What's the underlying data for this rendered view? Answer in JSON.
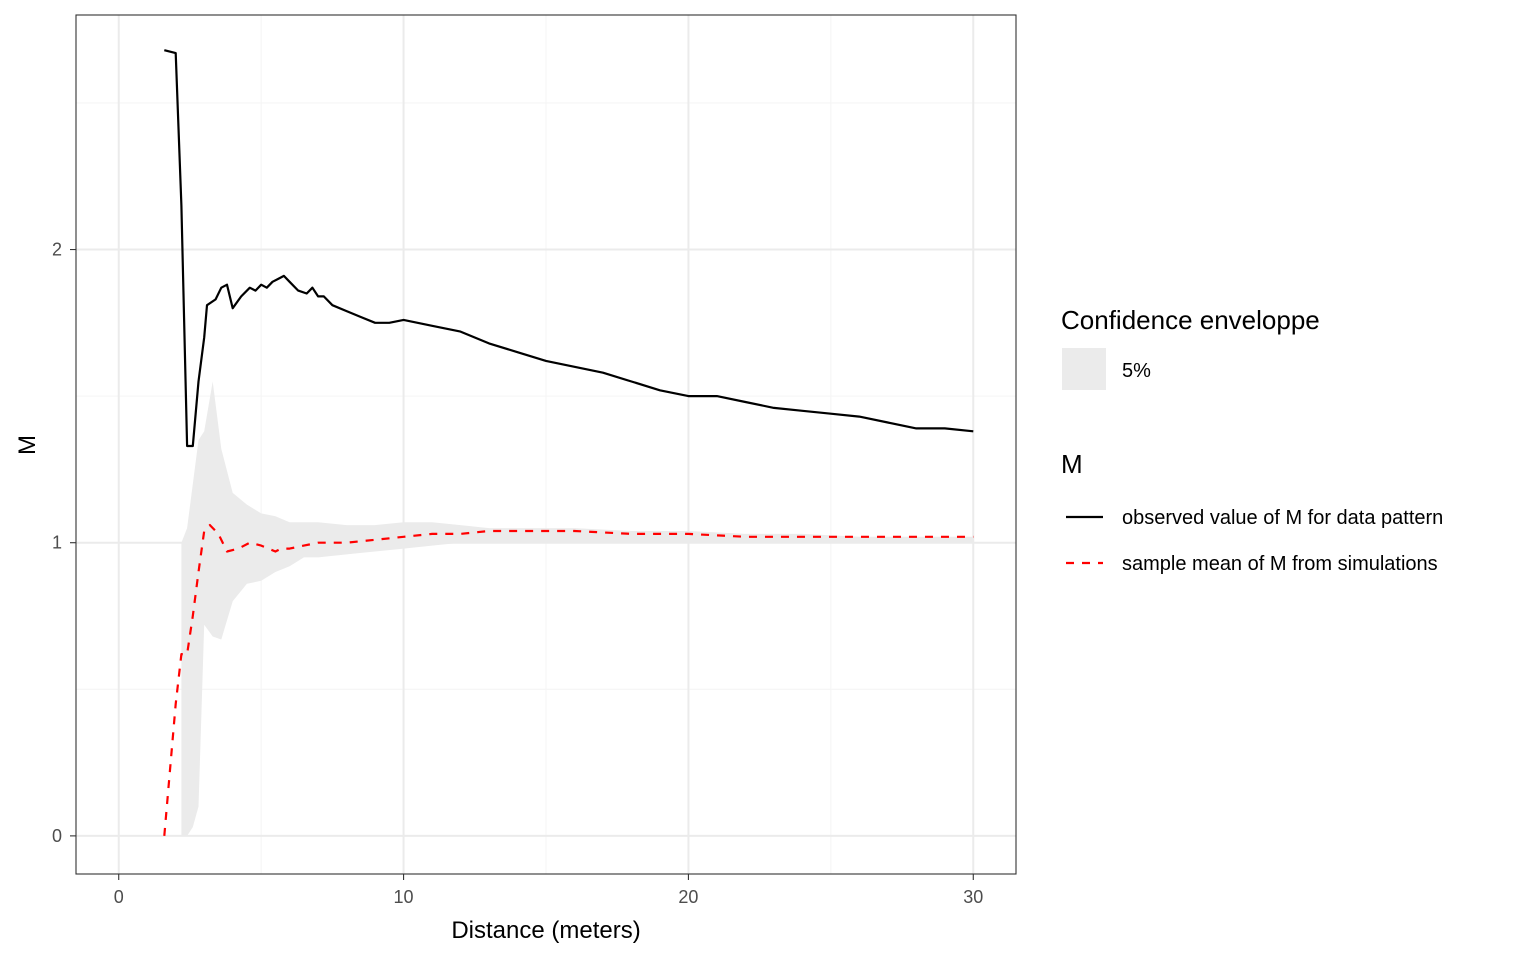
{
  "colors": {
    "observed": "#000000",
    "mean": "#ff0000",
    "envelope": "#ebebeb",
    "grid_major": "#ebebeb",
    "grid_minor": "#f5f5f5",
    "panel_border": "#333333"
  },
  "chart_data": {
    "type": "line",
    "xlabel": "Distance (meters)",
    "ylabel": "M",
    "xlim": [
      -1.5,
      31.5
    ],
    "ylim": [
      -0.13,
      2.8
    ],
    "x_ticks": [
      0,
      10,
      20,
      30
    ],
    "x_tick_labels": [
      "0",
      "10",
      "20",
      "30"
    ],
    "y_ticks": [
      0,
      1,
      2
    ],
    "y_tick_labels": [
      "0",
      "1",
      "2"
    ],
    "grid": true,
    "legend_position": "right",
    "legend": {
      "fill_title": "Confidence enveloppe",
      "fill_entry": "5%",
      "line_title": "M",
      "line_entries": [
        "observed value of M for data pattern",
        "sample mean of M from simulations"
      ]
    },
    "envelope": {
      "name": "5%",
      "x": [
        2.2,
        2.4,
        2.6,
        2.8,
        3.0,
        3.3,
        3.6,
        4.0,
        4.5,
        5.0,
        5.5,
        6.0,
        6.5,
        7.0,
        8.0,
        9.0,
        10.0,
        11.0,
        12.0,
        13.0,
        14.0,
        15.0,
        16.0,
        18.0,
        20.0,
        22.0,
        24.0,
        26.0,
        28.0,
        30.0
      ],
      "lo": [
        0.0,
        0.0,
        0.03,
        0.1,
        0.72,
        0.68,
        0.67,
        0.8,
        0.86,
        0.87,
        0.9,
        0.92,
        0.95,
        0.95,
        0.96,
        0.97,
        0.98,
        0.99,
        1.0,
        1.0,
        1.0,
        1.0,
        1.0,
        1.0,
        1.0,
        1.0,
        1.0,
        1.0,
        1.0,
        1.0
      ],
      "hi": [
        1.0,
        1.05,
        1.2,
        1.35,
        1.38,
        1.55,
        1.32,
        1.17,
        1.13,
        1.1,
        1.09,
        1.07,
        1.07,
        1.07,
        1.06,
        1.06,
        1.07,
        1.07,
        1.06,
        1.05,
        1.05,
        1.05,
        1.05,
        1.04,
        1.04,
        1.03,
        1.03,
        1.02,
        1.02,
        1.02
      ]
    },
    "series": [
      {
        "name": "observed value of M for data pattern",
        "style": "solid",
        "x": [
          1.6,
          2.0,
          2.2,
          2.4,
          2.6,
          2.8,
          3.0,
          3.1,
          3.4,
          3.6,
          3.8,
          4.0,
          4.3,
          4.6,
          4.8,
          5.0,
          5.2,
          5.4,
          5.6,
          5.8,
          6.0,
          6.3,
          6.6,
          6.8,
          7.0,
          7.2,
          7.5,
          8.0,
          8.5,
          9.0,
          9.5,
          10.0,
          11.0,
          12.0,
          13.0,
          14.0,
          15.0,
          16.0,
          17.0,
          18.0,
          19.0,
          20.0,
          21.0,
          22.0,
          23.0,
          24.0,
          25.0,
          26.0,
          27.0,
          28.0,
          29.0,
          30.0
        ],
        "values": [
          2.68,
          2.67,
          2.15,
          1.33,
          1.33,
          1.55,
          1.7,
          1.81,
          1.83,
          1.87,
          1.88,
          1.8,
          1.84,
          1.87,
          1.86,
          1.88,
          1.87,
          1.89,
          1.9,
          1.91,
          1.89,
          1.86,
          1.85,
          1.87,
          1.84,
          1.84,
          1.81,
          1.79,
          1.77,
          1.75,
          1.75,
          1.76,
          1.74,
          1.72,
          1.68,
          1.65,
          1.62,
          1.6,
          1.58,
          1.55,
          1.52,
          1.5,
          1.5,
          1.48,
          1.46,
          1.45,
          1.44,
          1.43,
          1.41,
          1.39,
          1.39,
          1.38
        ]
      },
      {
        "name": "sample mean of M from simulations",
        "style": "dashed",
        "x": [
          1.6,
          2.0,
          2.2,
          2.4,
          2.6,
          2.8,
          3.0,
          3.2,
          3.5,
          3.8,
          4.2,
          4.6,
          5.0,
          5.5,
          5.7,
          6.0,
          6.5,
          7.0,
          8.0,
          9.0,
          10.0,
          11.0,
          12.0,
          13.0,
          14.0,
          15.0,
          16.0,
          18.0,
          20.0,
          22.0,
          24.0,
          26.0,
          28.0,
          30.0
        ],
        "values": [
          0.0,
          0.45,
          0.62,
          0.62,
          0.75,
          0.9,
          1.04,
          1.06,
          1.03,
          0.97,
          0.98,
          1.0,
          0.99,
          0.97,
          0.98,
          0.98,
          0.99,
          1.0,
          1.0,
          1.01,
          1.02,
          1.03,
          1.03,
          1.04,
          1.04,
          1.04,
          1.04,
          1.03,
          1.03,
          1.02,
          1.02,
          1.02,
          1.02,
          1.02
        ]
      }
    ]
  }
}
